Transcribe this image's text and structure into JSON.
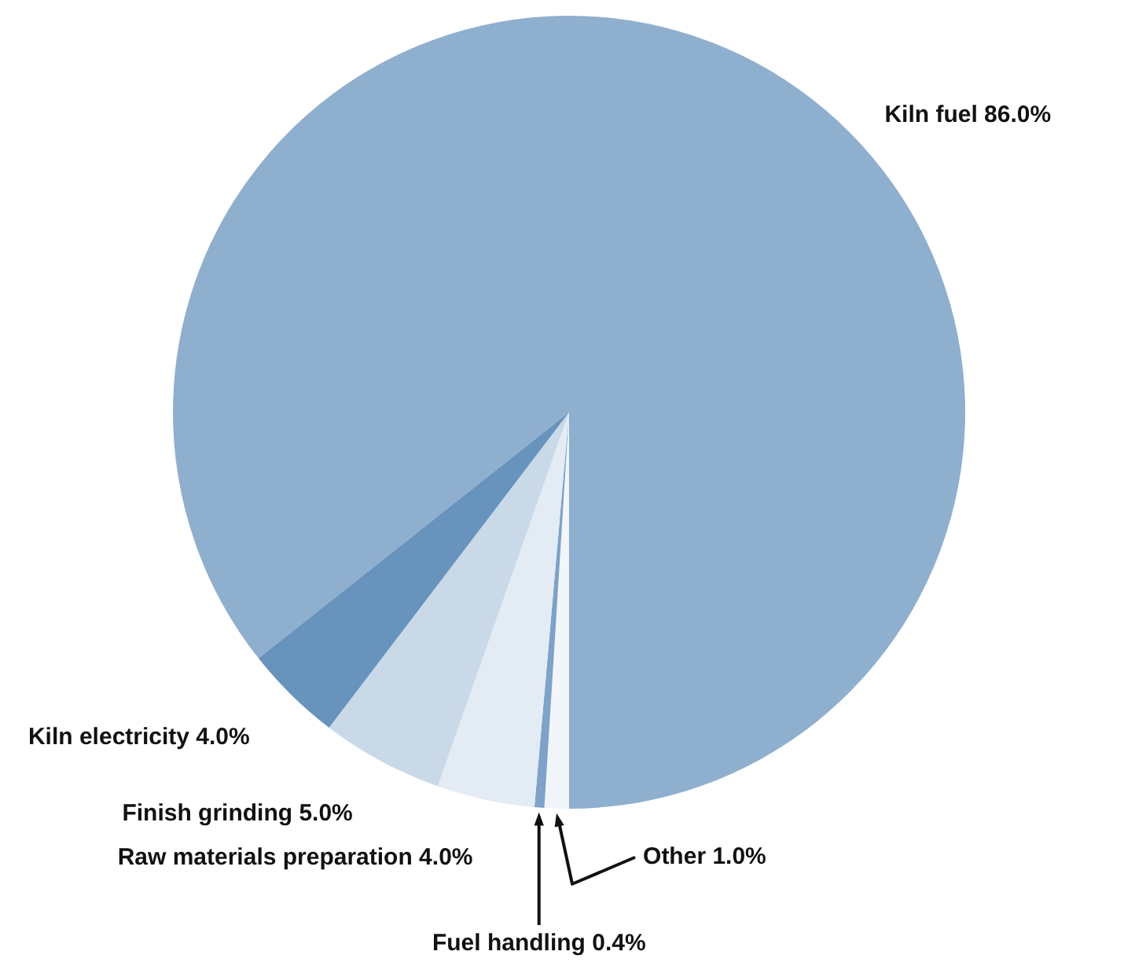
{
  "chart_data": {
    "type": "pie",
    "categories": [
      "Kiln fuel",
      "Other",
      "Fuel handling",
      "Raw materials preparation",
      "Finish grinding",
      "Kiln electricity"
    ],
    "values": [
      86.0,
      1.0,
      0.4,
      4.0,
      5.0,
      4.0
    ],
    "value_labels": [
      "86.0%",
      "1.0%",
      "0.4%",
      "4.0%",
      "5.0%",
      "4.0%"
    ],
    "colors": [
      "#8fafcf",
      "#f2f6fa",
      "#7ea2c8",
      "#e3ebf4",
      "#c9d9e8",
      "#6893bd"
    ],
    "legend": false
  }
}
